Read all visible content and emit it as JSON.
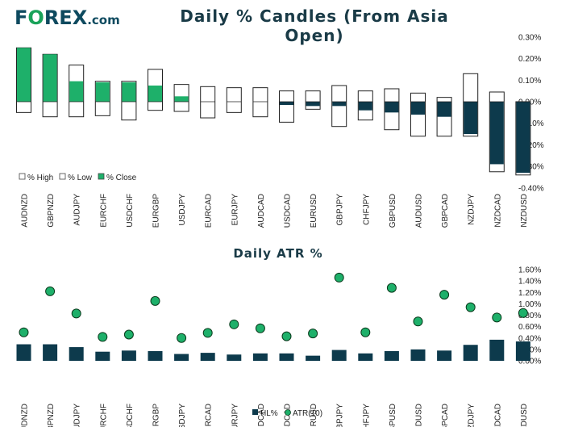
{
  "brand": {
    "logo_main": "F",
    "logo_o": "O",
    "logo_rest": "REX",
    "logo_suffix": ".com"
  },
  "chart_data": [
    {
      "type": "bar",
      "title": "Daily % Candles (From Asia Open)",
      "categories": [
        "AUDNZD",
        "GBPNZD",
        "AUDJPY",
        "EURCHF",
        "USDCHF",
        "EURGBP",
        "USDJPY",
        "EURCAD",
        "EURJPY",
        "AUDCAD",
        "USDCAD",
        "EURUSD",
        "GBPJPY",
        "CHFJPY",
        "GBPUSD",
        "AUDUSD",
        "GBPCAD",
        "NZDJPY",
        "NZDCAD",
        "NZDUSD"
      ],
      "series": [
        {
          "name": "% High",
          "values": [
            0.25,
            0.22,
            0.17,
            0.095,
            0.095,
            0.15,
            0.08,
            0.07,
            0.065,
            0.065,
            0.05,
            0.05,
            0.075,
            0.05,
            0.06,
            0.04,
            0.02,
            0.13,
            0.045,
            0.0
          ]
        },
        {
          "name": "% Low",
          "values": [
            -0.05,
            -0.07,
            -0.07,
            -0.065,
            -0.085,
            -0.04,
            -0.045,
            -0.075,
            -0.05,
            -0.07,
            -0.095,
            -0.035,
            -0.115,
            -0.085,
            -0.13,
            -0.16,
            -0.16,
            -0.16,
            -0.325,
            -0.34
          ]
        },
        {
          "name": "% Close",
          "values": [
            0.25,
            0.22,
            0.095,
            0.09,
            0.09,
            0.075,
            0.025,
            0.0,
            0.0,
            0.0,
            -0.015,
            -0.02,
            -0.02,
            -0.04,
            -0.05,
            -0.06,
            -0.07,
            -0.15,
            -0.29,
            -0.33
          ]
        }
      ],
      "ylim": [
        -0.4,
        0.3
      ],
      "yticks": [
        "0.30%",
        "0.20%",
        "0.10%",
        "0.00%",
        "-0.10%",
        "-0.20%",
        "-0.30%",
        "-0.40%"
      ],
      "ytick_values": [
        0.3,
        0.2,
        0.1,
        0.0,
        -0.1,
        -0.2,
        -0.3,
        -0.4
      ],
      "legend": [
        "% High",
        "% Low",
        "% Close"
      ],
      "colors": {
        "up": "#1eb06a",
        "down": "#0d3a4c",
        "outline": "#222222"
      }
    },
    {
      "type": "bar",
      "title": "Daily ATR %",
      "categories": [
        "AUDNZD",
        "GBPNZD",
        "AUDJPY",
        "EURCHF",
        "USDCHF",
        "EURGBP",
        "USDJPY",
        "EURCAD",
        "EURJPY",
        "AUDCAD",
        "USDCAD",
        "EURUSD",
        "GBPJPY",
        "CHFJPY",
        "GBPUSD",
        "AUDUSD",
        "GBPCAD",
        "NZDJPY",
        "NZDCAD",
        "NZDUSD"
      ],
      "series": [
        {
          "name": "HL%",
          "values": [
            0.29,
            0.29,
            0.24,
            0.16,
            0.18,
            0.17,
            0.12,
            0.14,
            0.11,
            0.13,
            0.13,
            0.09,
            0.19,
            0.13,
            0.17,
            0.2,
            0.18,
            0.28,
            0.37,
            0.34
          ]
        },
        {
          "name": "ATR(10)",
          "values": [
            0.5,
            1.22,
            0.83,
            0.42,
            0.46,
            1.05,
            0.4,
            0.49,
            0.64,
            0.57,
            0.43,
            0.48,
            1.46,
            0.5,
            1.28,
            0.69,
            1.16,
            0.94,
            0.76,
            0.84
          ]
        }
      ],
      "ylim": [
        0,
        1.6
      ],
      "yticks": [
        "1.60%",
        "1.40%",
        "1.20%",
        "1.00%",
        "0.80%",
        "0.60%",
        "0.40%",
        "0.20%",
        "0.00%"
      ],
      "ytick_values": [
        1.6,
        1.4,
        1.2,
        1.0,
        0.8,
        0.6,
        0.4,
        0.2,
        0.0
      ],
      "legend": [
        "HL%",
        "ATR(10)"
      ],
      "colors": {
        "bar": "#0d3a4c",
        "marker": "#1eb06a"
      }
    }
  ]
}
